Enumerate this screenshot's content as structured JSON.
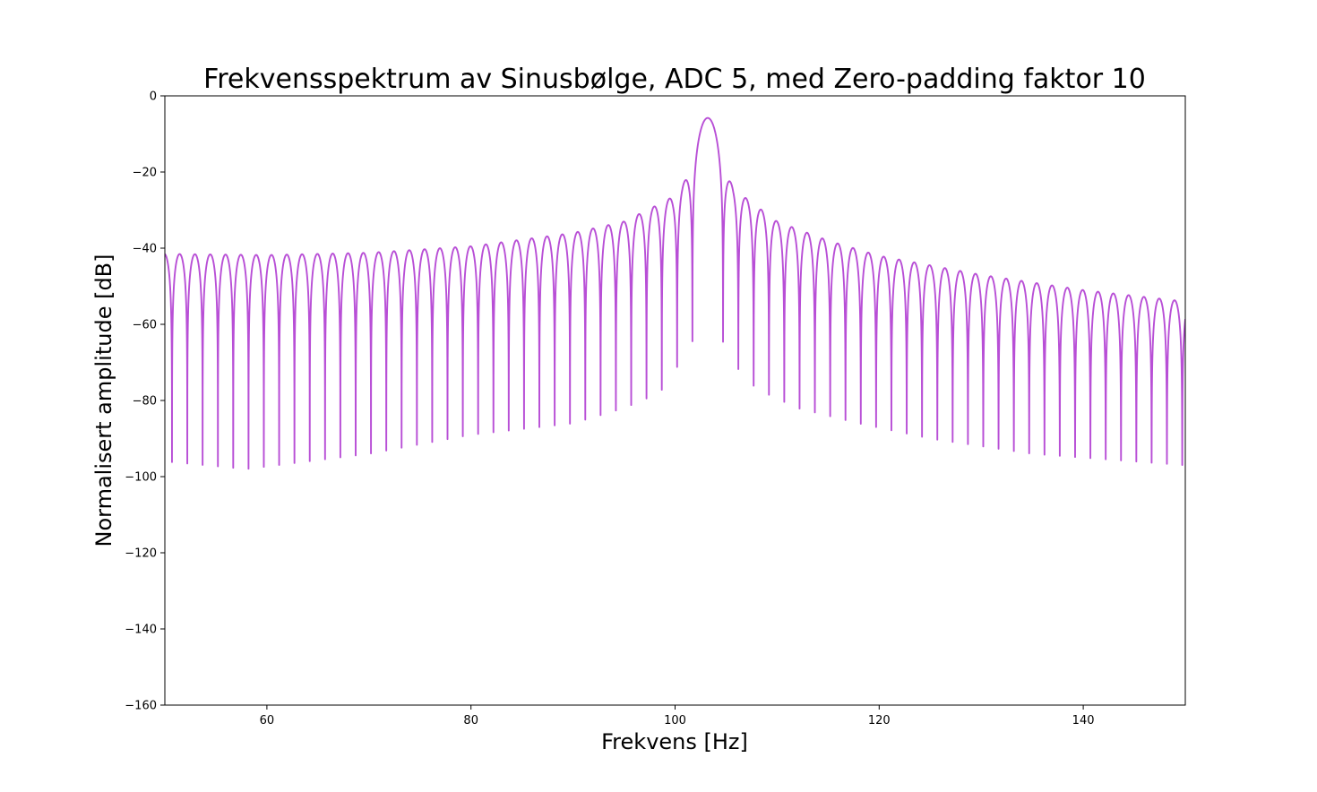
{
  "chart_data": {
    "type": "line",
    "title": "Frekvensspektrum av Sinusbølge, ADC 5, med Zero-padding faktor 10",
    "xlabel": "Frekvens [Hz]",
    "ylabel": "Normalisert amplitude [dB]",
    "xlim": [
      50,
      150
    ],
    "ylim": [
      -160,
      0
    ],
    "xticks": [
      60,
      80,
      100,
      120,
      140
    ],
    "yticks": [
      0,
      -20,
      -40,
      -60,
      -80,
      -100,
      -120,
      -140,
      -160
    ],
    "xtick_labels": [
      "60",
      "80",
      "100",
      "120",
      "140"
    ],
    "ytick_labels": [
      "0",
      "−20",
      "−40",
      "−60",
      "−80",
      "−100",
      "−120",
      "−140",
      "−160"
    ],
    "grid": false,
    "legend": "none",
    "series": [
      {
        "color": "#b84fd6",
        "peak": {
          "x": 103.2,
          "y": -5.8
        },
        "lobe_spacing_hz": 1.5,
        "sidelobe_peaks": [
          {
            "x": 50.0,
            "y": -41.5
          },
          {
            "x": 60.0,
            "y": -41.8
          },
          {
            "x": 70.0,
            "y": -41.2
          },
          {
            "x": 80.0,
            "y": -39.5
          },
          {
            "x": 90.0,
            "y": -36.0
          },
          {
            "x": 95.0,
            "y": -33.0
          },
          {
            "x": 98.0,
            "y": -29.0
          },
          {
            "x": 99.8,
            "y": -26.5
          },
          {
            "x": 100.7,
            "y": -23.5
          },
          {
            "x": 101.7,
            "y": -19.0
          },
          {
            "x": 104.7,
            "y": -19.0
          },
          {
            "x": 105.7,
            "y": -24.0
          },
          {
            "x": 107.0,
            "y": -27.0
          },
          {
            "x": 110.0,
            "y": -33.0
          },
          {
            "x": 115.0,
            "y": -38.0
          },
          {
            "x": 120.0,
            "y": -42.0
          },
          {
            "x": 130.0,
            "y": -47.0
          },
          {
            "x": 140.0,
            "y": -51.0
          },
          {
            "x": 150.0,
            "y": -54.0
          }
        ],
        "null_floor": [
          {
            "x": 50.0,
            "y": -96
          },
          {
            "x": 58.0,
            "y": -98
          },
          {
            "x": 70.0,
            "y": -94
          },
          {
            "x": 80.0,
            "y": -89
          },
          {
            "x": 90.0,
            "y": -86
          },
          {
            "x": 95.0,
            "y": -82
          },
          {
            "x": 98.5,
            "y": -78
          },
          {
            "x": 100.5,
            "y": -70
          },
          {
            "x": 101.8,
            "y": -64
          },
          {
            "x": 104.6,
            "y": -64
          },
          {
            "x": 105.6,
            "y": -70
          },
          {
            "x": 108.0,
            "y": -77
          },
          {
            "x": 112.0,
            "y": -82
          },
          {
            "x": 118.0,
            "y": -86
          },
          {
            "x": 125.0,
            "y": -90
          },
          {
            "x": 135.0,
            "y": -94
          },
          {
            "x": 150.0,
            "y": -97
          }
        ]
      }
    ]
  }
}
